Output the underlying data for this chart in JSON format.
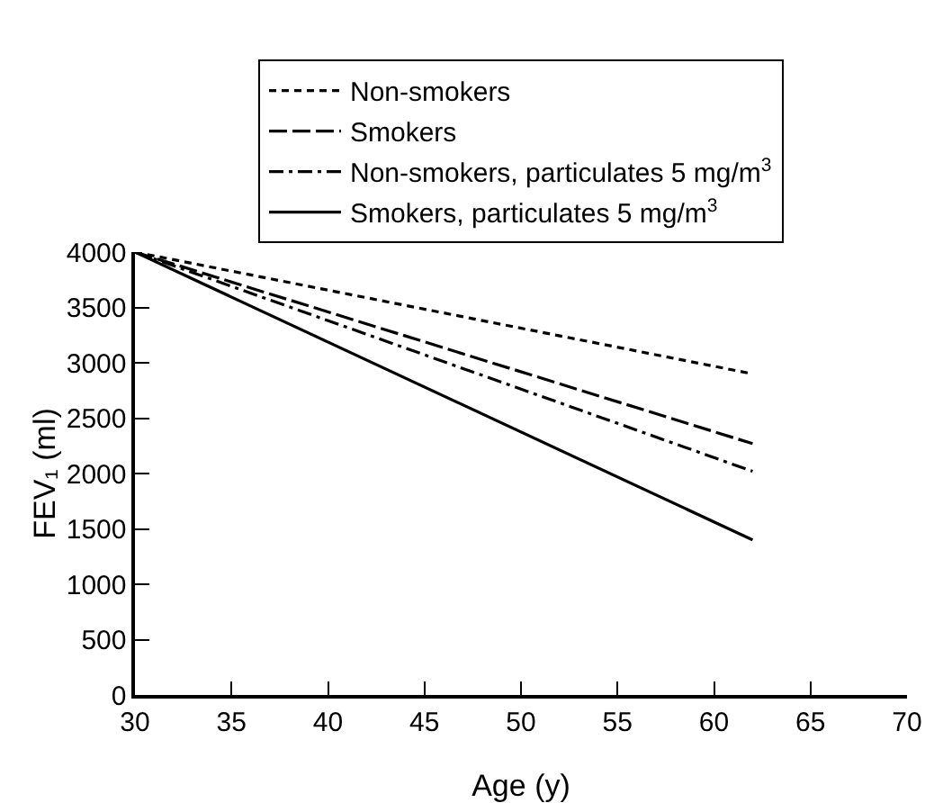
{
  "chart_data": {
    "type": "line",
    "xlabel": "Age (y)",
    "ylabel": "FEV₁ (ml)",
    "xlim": [
      30,
      70
    ],
    "xticks": [
      30,
      35,
      40,
      45,
      50,
      55,
      60,
      65,
      70
    ],
    "ylim": [
      0,
      4000
    ],
    "yticks": [
      0,
      500,
      1000,
      1500,
      2000,
      2500,
      3000,
      3500,
      4000
    ],
    "grid": false,
    "legend": "top",
    "marker": "none",
    "x": [
      30,
      62
    ],
    "series": [
      {
        "name": "Non-smokers",
        "color": "#000000",
        "line_style": "dashed",
        "values": [
          4000,
          2900
        ]
      },
      {
        "name": "Smokers",
        "color": "#000000",
        "line_style": "longdash",
        "values": [
          4000,
          2270
        ]
      },
      {
        "name": "Non-smokers, particulates 5 mg/m$^{3}$",
        "color": "#000000",
        "line_style": "dashdot",
        "values": [
          4000,
          2020
        ]
      },
      {
        "name": "Smokers, particulates 5 mg/m$^{3}$",
        "color": "#000000",
        "line_style": "solid",
        "values": [
          4000,
          1400
        ]
      }
    ]
  }
}
